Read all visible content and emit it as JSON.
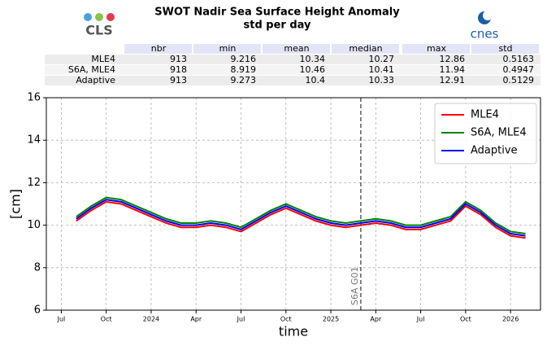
{
  "logos": [
    "CLS",
    "cnes"
  ],
  "table": {
    "columns": [
      "nbr",
      "min",
      "mean",
      "median",
      "max",
      "std"
    ],
    "rows": [
      [
        "MLE4",
        913,
        9.216,
        10.34,
        10.27,
        12.86,
        0.5163
      ],
      [
        "S6A, MLE4",
        918,
        8.919,
        10.46,
        10.41,
        11.94,
        0.4947
      ],
      [
        "Adaptive",
        913,
        9.273,
        10.4,
        10.33,
        12.91,
        0.5129
      ]
    ]
  },
  "chart_data": {
    "type": "line",
    "title": "SWOT Nadir Sea Surface Height Anomaly",
    "subtitle": "std per day",
    "x_label": "time",
    "y_label": "[cm]",
    "x": [
      "2023-08",
      "2023-09",
      "2023-10",
      "2023-11",
      "2023-12",
      "2024-01",
      "2024-02",
      "2024-03",
      "2024-04",
      "2024-05",
      "2024-06",
      "2024-07",
      "2024-08",
      "2024-09",
      "2024-10",
      "2024-11",
      "2024-12",
      "2025-01",
      "2025-02",
      "2025-03",
      "2025-04",
      "2025-05",
      "2025-06",
      "2025-07",
      "2025-08",
      "2025-09",
      "2025-10",
      "2025-11",
      "2025-12",
      "2026-01",
      "2026-02"
    ],
    "series": [
      {
        "name": "MLE4",
        "color": "#ff0000",
        "values": [
          10.2,
          10.7,
          11.1,
          11.0,
          10.7,
          10.4,
          10.1,
          9.9,
          9.9,
          10.0,
          9.9,
          9.7,
          10.1,
          10.5,
          10.8,
          10.5,
          10.2,
          10.0,
          9.9,
          10.0,
          10.1,
          10.0,
          9.8,
          9.8,
          10.0,
          10.2,
          10.9,
          10.5,
          9.9,
          9.5,
          9.4
        ]
      },
      {
        "name": "S6A, MLE4",
        "color": "#008000",
        "values": [
          10.4,
          10.9,
          11.3,
          11.2,
          10.9,
          10.6,
          10.3,
          10.1,
          10.1,
          10.2,
          10.1,
          9.9,
          10.3,
          10.7,
          11.0,
          10.7,
          10.4,
          10.2,
          10.1,
          10.2,
          10.3,
          10.2,
          10.0,
          10.0,
          10.2,
          10.4,
          11.1,
          10.7,
          10.1,
          9.7,
          9.6
        ]
      },
      {
        "name": "Adaptive",
        "color": "#0000ff",
        "values": [
          10.3,
          10.8,
          11.2,
          11.1,
          10.8,
          10.5,
          10.2,
          10.0,
          10.0,
          10.1,
          10.0,
          9.8,
          10.2,
          10.6,
          10.9,
          10.6,
          10.3,
          10.1,
          10.0,
          10.1,
          10.2,
          10.1,
          9.9,
          9.9,
          10.1,
          10.3,
          11.0,
          10.6,
          10.0,
          9.6,
          9.5
        ]
      }
    ],
    "xlim": [
      "2023-06",
      "2026-03"
    ],
    "xticks": [
      {
        "value": "2023-07",
        "label": "Jul"
      },
      {
        "value": "2023-10",
        "label": "Oct"
      },
      {
        "value": "2024-01",
        "label": "2024"
      },
      {
        "value": "2024-04",
        "label": "Apr"
      },
      {
        "value": "2024-07",
        "label": "Jul"
      },
      {
        "value": "2024-10",
        "label": "Oct"
      },
      {
        "value": "2025-01",
        "label": "2025"
      },
      {
        "value": "2025-04",
        "label": "Apr"
      },
      {
        "value": "2025-07",
        "label": "Jul"
      },
      {
        "value": "2025-10",
        "label": "Oct"
      },
      {
        "value": "2026-01",
        "label": "2026"
      }
    ],
    "ylim": [
      6,
      16
    ],
    "yticks": [
      6,
      8,
      10,
      12,
      14,
      16
    ],
    "grid": true,
    "legend": "upper right",
    "annotations": [
      {
        "x": "2025-03",
        "text": "S6A G01"
      }
    ]
  }
}
